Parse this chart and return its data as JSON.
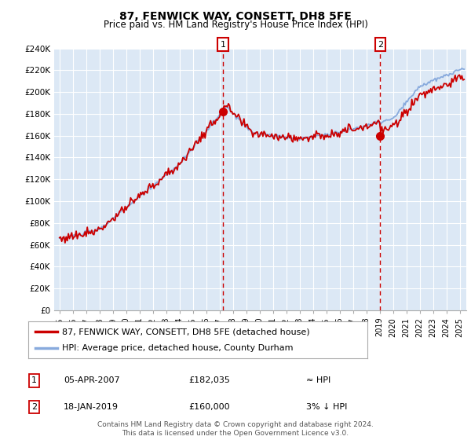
{
  "title": "87, FENWICK WAY, CONSETT, DH8 5FE",
  "subtitle": "Price paid vs. HM Land Registry's House Price Index (HPI)",
  "legend_line1": "87, FENWICK WAY, CONSETT, DH8 5FE (detached house)",
  "legend_line2": "HPI: Average price, detached house, County Durham",
  "footnote": "Contains HM Land Registry data © Crown copyright and database right 2024.\nThis data is licensed under the Open Government Licence v3.0.",
  "table": [
    {
      "num": "1",
      "date": "05-APR-2007",
      "price": "£182,035",
      "relation": "≈ HPI"
    },
    {
      "num": "2",
      "date": "18-JAN-2019",
      "price": "£160,000",
      "relation": "3% ↓ HPI"
    }
  ],
  "marker1_year": 2007.26,
  "marker2_year": 2019.05,
  "marker1_price": 182035,
  "marker2_price": 160000,
  "ylim": [
    0,
    240000
  ],
  "yticks": [
    0,
    20000,
    40000,
    60000,
    80000,
    100000,
    120000,
    140000,
    160000,
    180000,
    200000,
    220000,
    240000
  ],
  "ytick_labels": [
    "£0",
    "£20K",
    "£40K",
    "£60K",
    "£80K",
    "£100K",
    "£120K",
    "£140K",
    "£160K",
    "£180K",
    "£200K",
    "£220K",
    "£240K"
  ],
  "xlim_start": 1994.6,
  "xlim_end": 2025.5,
  "background_color": "#ffffff",
  "plot_background": "#dce8f5",
  "grid_color": "#ffffff",
  "red_color": "#cc0000",
  "blue_color": "#88aadd"
}
